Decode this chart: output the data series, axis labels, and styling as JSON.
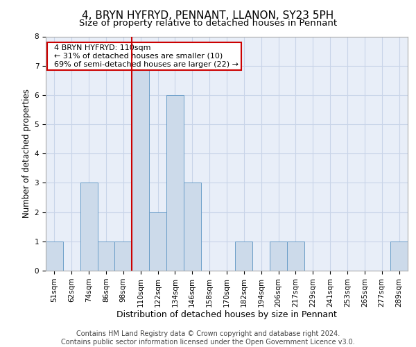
{
  "title1": "4, BRYN HYFRYD, PENNANT, LLANON, SY23 5PH",
  "title2": "Size of property relative to detached houses in Pennant",
  "xlabel": "Distribution of detached houses by size in Pennant",
  "ylabel": "Number of detached properties",
  "categories": [
    "51sqm",
    "62sqm",
    "74sqm",
    "86sqm",
    "98sqm",
    "110sqm",
    "122sqm",
    "134sqm",
    "146sqm",
    "158sqm",
    "170sqm",
    "182sqm",
    "194sqm",
    "206sqm",
    "217sqm",
    "229sqm",
    "241sqm",
    "253sqm",
    "265sqm",
    "277sqm",
    "289sqm"
  ],
  "values": [
    1,
    0,
    3,
    1,
    1,
    7,
    2,
    6,
    3,
    0,
    0,
    1,
    0,
    1,
    1,
    0,
    0,
    0,
    0,
    0,
    1
  ],
  "highlight_index": 5,
  "bar_color": "#ccdaea",
  "bar_edge_color": "#6b9ec8",
  "highlight_line_color": "#cc0000",
  "ylim": [
    0,
    8
  ],
  "yticks": [
    0,
    1,
    2,
    3,
    4,
    5,
    6,
    7,
    8
  ],
  "annotation_title": "4 BRYN HYFRYD: 110sqm",
  "annotation_line1": "← 31% of detached houses are smaller (10)",
  "annotation_line2": "69% of semi-detached houses are larger (22) →",
  "annotation_box_color": "#cc0000",
  "footer1": "Contains HM Land Registry data © Crown copyright and database right 2024.",
  "footer2": "Contains public sector information licensed under the Open Government Licence v3.0.",
  "title1_fontsize": 11,
  "title2_fontsize": 9.5,
  "xlabel_fontsize": 9,
  "ylabel_fontsize": 8.5,
  "tick_fontsize": 7.5,
  "annotation_fontsize": 8,
  "footer_fontsize": 7,
  "grid_color": "#c8d4e8",
  "background_color": "#e8eef8"
}
